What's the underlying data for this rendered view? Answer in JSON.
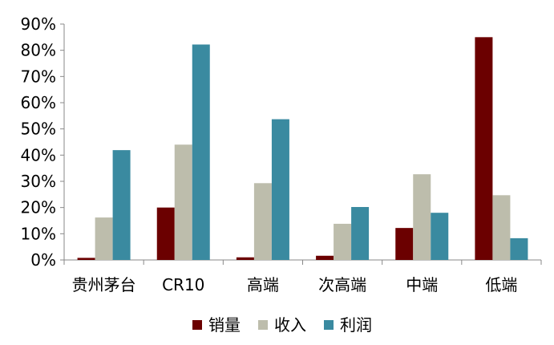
{
  "chart_data": {
    "type": "bar",
    "categories": [
      "贵州茅台",
      "CR10",
      "高端",
      "次高端",
      "中端",
      "低端"
    ],
    "series": [
      {
        "name": "销量",
        "color": "#6b0000",
        "values": [
          0.8,
          20.0,
          1.0,
          1.6,
          12.2,
          85.0
        ]
      },
      {
        "name": "收入",
        "color": "#bdbdac",
        "values": [
          16.2,
          44.0,
          29.3,
          13.8,
          32.7,
          24.7
        ]
      },
      {
        "name": "利润",
        "color": "#3a8aa0",
        "values": [
          41.9,
          82.2,
          53.7,
          20.2,
          18.0,
          8.3
        ]
      }
    ],
    "title": "",
    "xlabel": "",
    "ylabel": "",
    "ylim": [
      0,
      90
    ],
    "yticks": [
      "0%",
      "10%",
      "20%",
      "30%",
      "40%",
      "50%",
      "60%",
      "70%",
      "80%",
      "90%"
    ],
    "grid": false,
    "legend_position": "bottom"
  }
}
